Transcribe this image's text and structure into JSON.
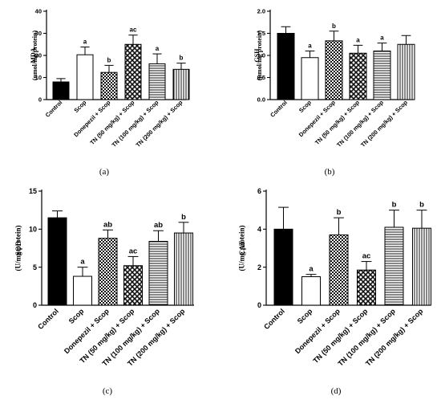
{
  "chart_data": [
    {
      "panel": "(a)",
      "type": "bar",
      "categories": [
        "Control",
        "Scop",
        "Donepezil + Scop",
        "TN (50 mg/kg) + Scop",
        "TN (100 mg/kg) + Scop",
        "TN (200 mg/kg) + Scop"
      ],
      "values": [
        8,
        20.3,
        12.3,
        25,
        16.2,
        13.7
      ],
      "errors": [
        1.5,
        3.5,
        3.2,
        4.2,
        4.5,
        2.8
      ],
      "sig_labels": [
        "",
        "a",
        "b",
        "ac",
        "a",
        "b"
      ],
      "ylabel_line1": "MDA",
      "ylabel_line2": "(nmol/mg protein)",
      "ylim": [
        0,
        40
      ],
      "yticks": [
        "0",
        "10",
        "20",
        "30",
        "40"
      ],
      "fills": [
        "solid-black",
        "white",
        "checker",
        "dense-checker",
        "horizontal-lines",
        "vertical-lines"
      ]
    },
    {
      "panel": "(b)",
      "type": "bar",
      "categories": [
        "Control",
        "Scop",
        "Donepezil + Scop",
        "TN (50 mg/kg) + Scop",
        "TN (100 mg/kg) + Scop",
        "TN (200 mg/kg) + Scop"
      ],
      "values": [
        1.5,
        0.95,
        1.33,
        1.05,
        1.1,
        1.25
      ],
      "errors": [
        0.15,
        0.15,
        0.22,
        0.18,
        0.18,
        0.2
      ],
      "sig_labels": [
        "",
        "a",
        "b",
        "a",
        "a",
        ""
      ],
      "ylabel_line1": "GSH",
      "ylabel_line2": "(µmol/mg protein)",
      "ylim": [
        0,
        2.0
      ],
      "yticks": [
        "0.0",
        "0.5",
        "1.0",
        "1.5",
        "2.0"
      ],
      "fills": [
        "solid-black",
        "white",
        "checker",
        "dense-checker",
        "horizontal-lines",
        "vertical-lines"
      ]
    },
    {
      "panel": "(c)",
      "type": "bar",
      "categories": [
        "Control",
        "Scop",
        "Donepezil + Scop",
        "TN (50 mg/kg) + Scop",
        "TN (100 mg/kg) + Scop",
        "TN (200 mg/kg) + Scop"
      ],
      "values": [
        11.5,
        3.8,
        8.8,
        5.2,
        8.4,
        9.5
      ],
      "errors": [
        0.9,
        1.2,
        1.1,
        1.2,
        1.4,
        1.4
      ],
      "sig_labels": [
        "",
        "a",
        "ab",
        "ac",
        "ab",
        "b"
      ],
      "ylabel_line1": "SOD",
      "ylabel_line2": "(U/mg protein)",
      "ylim": [
        0,
        15
      ],
      "yticks": [
        "0",
        "5",
        "10",
        "15"
      ],
      "fills": [
        "solid-black",
        "white",
        "checker",
        "dense-checker",
        "horizontal-lines",
        "vertical-lines"
      ]
    },
    {
      "panel": "(d)",
      "type": "bar",
      "categories": [
        "Control",
        "Scop",
        "Donepezil + Scop",
        "TN (50 mg/kg) + Scop",
        "TN (100 mg/kg) + Scop",
        "TN (200 mg/kg) + Scop"
      ],
      "values": [
        4.0,
        1.5,
        3.7,
        1.85,
        4.1,
        4.05
      ],
      "errors": [
        1.15,
        0.12,
        0.9,
        0.45,
        0.9,
        0.95
      ],
      "sig_labels": [
        "",
        "a",
        "b",
        "ac",
        "b",
        "b"
      ],
      "ylabel_line1": "CAT",
      "ylabel_line2": "(U/mg protein)",
      "ylim": [
        0,
        6
      ],
      "yticks": [
        "0",
        "2",
        "4",
        "6"
      ],
      "fills": [
        "solid-black",
        "white",
        "checker",
        "dense-checker",
        "horizontal-lines",
        "vertical-lines"
      ]
    }
  ]
}
